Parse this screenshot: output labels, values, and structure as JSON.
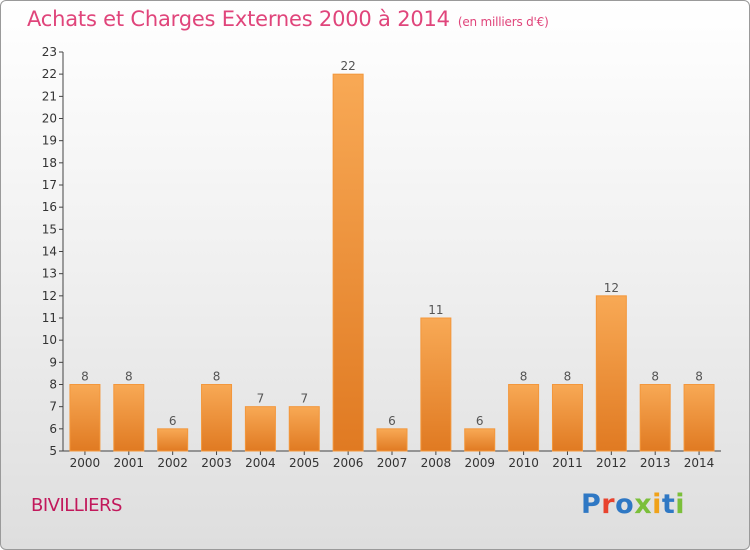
{
  "title": "Achats et Charges Externes 2000 à 2014",
  "unit": "(en milliers d'€)",
  "place": "BIVILLIERS",
  "logo": {
    "text": "Proxiti",
    "colors": [
      "#2f78c4",
      "#e8432e",
      "#2f78c4",
      "#7bbf3a",
      "#f0a21a",
      "#2f78c4",
      "#7bbf3a"
    ]
  },
  "colors": {
    "accent": "#e0457b",
    "bar_light": "#f8a955",
    "bar_dark": "#e07a22",
    "bar_edge": "#f3973b"
  },
  "chart_data": {
    "type": "bar",
    "title": "Achats et Charges Externes 2000 à 2014",
    "categories": [
      "2000",
      "2001",
      "2002",
      "2003",
      "2004",
      "2005",
      "2006",
      "2007",
      "2008",
      "2009",
      "2010",
      "2011",
      "2012",
      "2013",
      "2014"
    ],
    "values": [
      8,
      8,
      6,
      8,
      7,
      7,
      22,
      6,
      11,
      6,
      8,
      8,
      12,
      8,
      8
    ],
    "data_labels": [
      "8",
      "8",
      "6",
      "8",
      "7",
      "7",
      "22",
      "6",
      "11",
      "6",
      "8",
      "8",
      "12",
      "8",
      "8"
    ],
    "ylim": [
      5,
      23
    ],
    "yticks": [
      "5",
      "6",
      "7",
      "8",
      "9",
      "10",
      "11",
      "12",
      "13",
      "14",
      "15",
      "16",
      "17",
      "18",
      "19",
      "20",
      "21",
      "22",
      "23"
    ],
    "grid": false,
    "legend": "none"
  }
}
